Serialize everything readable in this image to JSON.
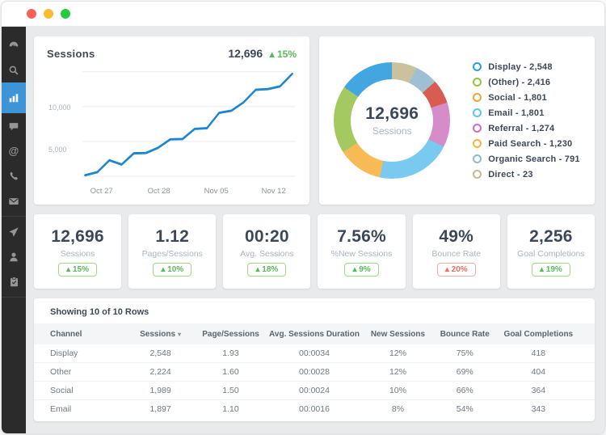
{
  "window": {
    "traffic_lights": [
      "#fc5f57",
      "#fdbd2e",
      "#28c83f"
    ]
  },
  "colors": {
    "sidebar_bg": "#2b2b2b",
    "sidebar_active": "#3d94d6",
    "line": "#1e86d0",
    "grid": "#e8eef5",
    "positive": "#5cb85c",
    "negative": "#ee6e62"
  },
  "icons": {
    "sort_desc": "▾",
    "arrow_up": "▴"
  },
  "sessions_chart": {
    "title": "Sessions",
    "total": "12,696",
    "delta_arrow": "▴",
    "delta": "15%",
    "ytick_upper": "10,000",
    "ytick_lower": "5,000",
    "x_labels": [
      "Oct 27",
      "Oct 28",
      "Nov 05",
      "Nov 12"
    ]
  },
  "donut": {
    "center_value": "12,696",
    "center_label": "Sessions",
    "legend": [
      {
        "text": "Display - 2,548",
        "color": "#2c9fde"
      },
      {
        "text": "(Other) - 2,416",
        "color": "#94c53f"
      },
      {
        "text": "Social - 1,801",
        "color": "#f2a33c"
      },
      {
        "text": "Email - 1,801",
        "color": "#5ec3f0"
      },
      {
        "text": "Referral - 1,274",
        "color": "#d06cc0"
      },
      {
        "text": "Paid Search - 1,230",
        "color": "#f5b43c"
      },
      {
        "text": "Organic Search - 791",
        "color": "#8ebad2"
      },
      {
        "text": "Direct - 23",
        "color": "#c4ba96"
      }
    ]
  },
  "stats": [
    {
      "value": "12,696",
      "label": "Sessions",
      "arrow": "▴",
      "change": "15%",
      "tone": "tone-green"
    },
    {
      "value": "1.12",
      "label": "Pages/Sessions",
      "arrow": "▴",
      "change": "10%",
      "tone": "tone-green"
    },
    {
      "value": "00:20",
      "label": "Avg. Sessions",
      "arrow": "▴",
      "change": "18%",
      "tone": "tone-green"
    },
    {
      "value": "7.56%",
      "label": "%New Sessions",
      "arrow": "▴",
      "change": "9%",
      "tone": "tone-green"
    },
    {
      "value": "49%",
      "label": "Bounce Rate",
      "arrow": "▴",
      "change": "20%",
      "tone": "tone-red"
    },
    {
      "value": "2,256",
      "label": "Goal Completions",
      "arrow": "▴",
      "change": "19%",
      "tone": "tone-green"
    }
  ],
  "table": {
    "title": "Showing 10 of 10 Rows",
    "headers": [
      "Channel",
      "Sessions",
      "Page/Sessions",
      "Avg. Sessions Duration",
      "New Sessions",
      "Bounce Rate",
      "Goal Completions"
    ],
    "sorted_column": "Sessions",
    "rows": [
      {
        "cells": [
          "Display",
          "2,548",
          "1.93",
          "00:0034",
          "12%",
          "75%",
          "418"
        ]
      },
      {
        "cells": [
          "Other",
          "2,224",
          "1.60",
          "00:0028",
          "12%",
          "69%",
          "404"
        ]
      },
      {
        "cells": [
          "Social",
          "1,989",
          "1.50",
          "00:0024",
          "10%",
          "66%",
          "364"
        ]
      },
      {
        "cells": [
          "Email",
          "1,897",
          "1.10",
          "00:0016",
          "8%",
          "54%",
          "343"
        ]
      }
    ]
  },
  "chart_data": [
    {
      "type": "line",
      "title": "Sessions",
      "x_labels": [
        "Oct 27",
        "Oct 28",
        "Nov 05",
        "Nov 12"
      ],
      "values": [
        150,
        600,
        2300,
        1700,
        3300,
        3350,
        4100,
        5300,
        5350,
        6800,
        6900,
        9100,
        9400,
        10600,
        12400,
        12500,
        12900,
        14700
      ],
      "ylim": [
        0,
        15000
      ],
      "gridlines": [
        0,
        5000,
        10000,
        15000
      ],
      "ylabel": "",
      "xlabel": "",
      "legend_position": "none"
    },
    {
      "type": "pie",
      "title": "Sessions by Channel",
      "center": {
        "value": "12,696",
        "label": "Sessions"
      },
      "segments": [
        {
          "label": "Direct",
          "value": 23,
          "deg": 25,
          "color": "#cbc19f"
        },
        {
          "label": "Organic Search",
          "value": 791,
          "deg": 23,
          "color": "#9fc0d4"
        },
        {
          "label": "Paid Search",
          "value": 1230,
          "deg": 24,
          "color": "#d85c52"
        },
        {
          "label": "Referral",
          "value": 1274,
          "deg": 45,
          "color": "#d68cc8"
        },
        {
          "label": "Email",
          "value": 1801,
          "deg": 75,
          "color": "#79c9f1"
        },
        {
          "label": "Social",
          "value": 1801,
          "deg": 45,
          "color": "#f7ba55"
        },
        {
          "label": "(Other)",
          "value": 2416,
          "deg": 68,
          "color": "#a3c960"
        },
        {
          "label": "Display",
          "value": 2548,
          "deg": 55,
          "color": "#44a6e0"
        }
      ]
    }
  ]
}
